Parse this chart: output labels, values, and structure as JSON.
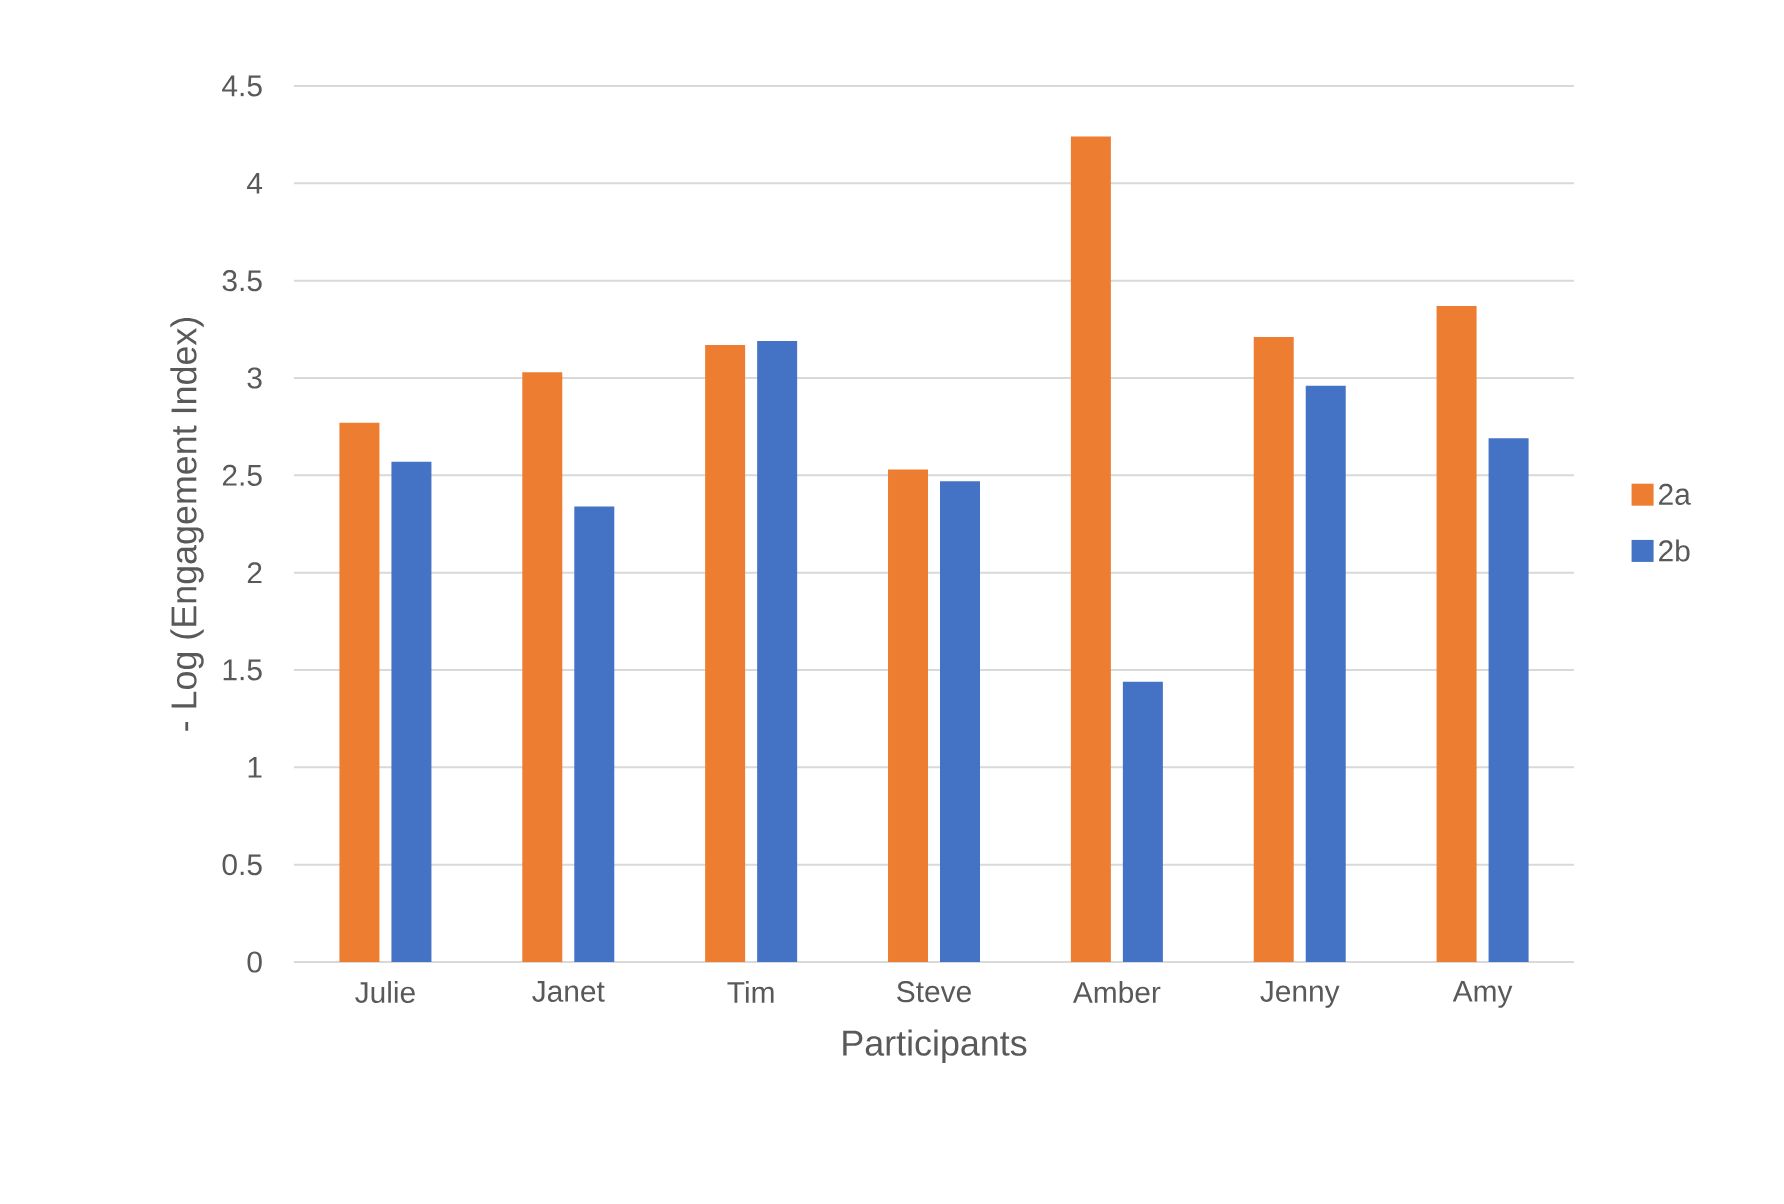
{
  "chart_data": {
    "type": "bar",
    "xlabel": "Participants",
    "ylabel": "- Log (Engagement Index)",
    "categories": [
      "Julie",
      "Janet",
      "Tim",
      "Steve",
      "Amber",
      "Jenny",
      "Amy"
    ],
    "series": [
      {
        "name": "2a",
        "color": "#ed7d31",
        "values": [
          2.77,
          3.03,
          3.17,
          2.53,
          4.24,
          3.21,
          3.37
        ]
      },
      {
        "name": "2b",
        "color": "#4472c4",
        "values": [
          2.57,
          2.34,
          3.19,
          2.47,
          1.44,
          2.96,
          2.69
        ]
      }
    ],
    "ylim": [
      0,
      4.5
    ],
    "yticks": [
      0,
      0.5,
      1,
      1.5,
      2,
      2.5,
      3,
      3.5,
      4,
      4.5
    ],
    "grid": "y",
    "legend": "right"
  }
}
